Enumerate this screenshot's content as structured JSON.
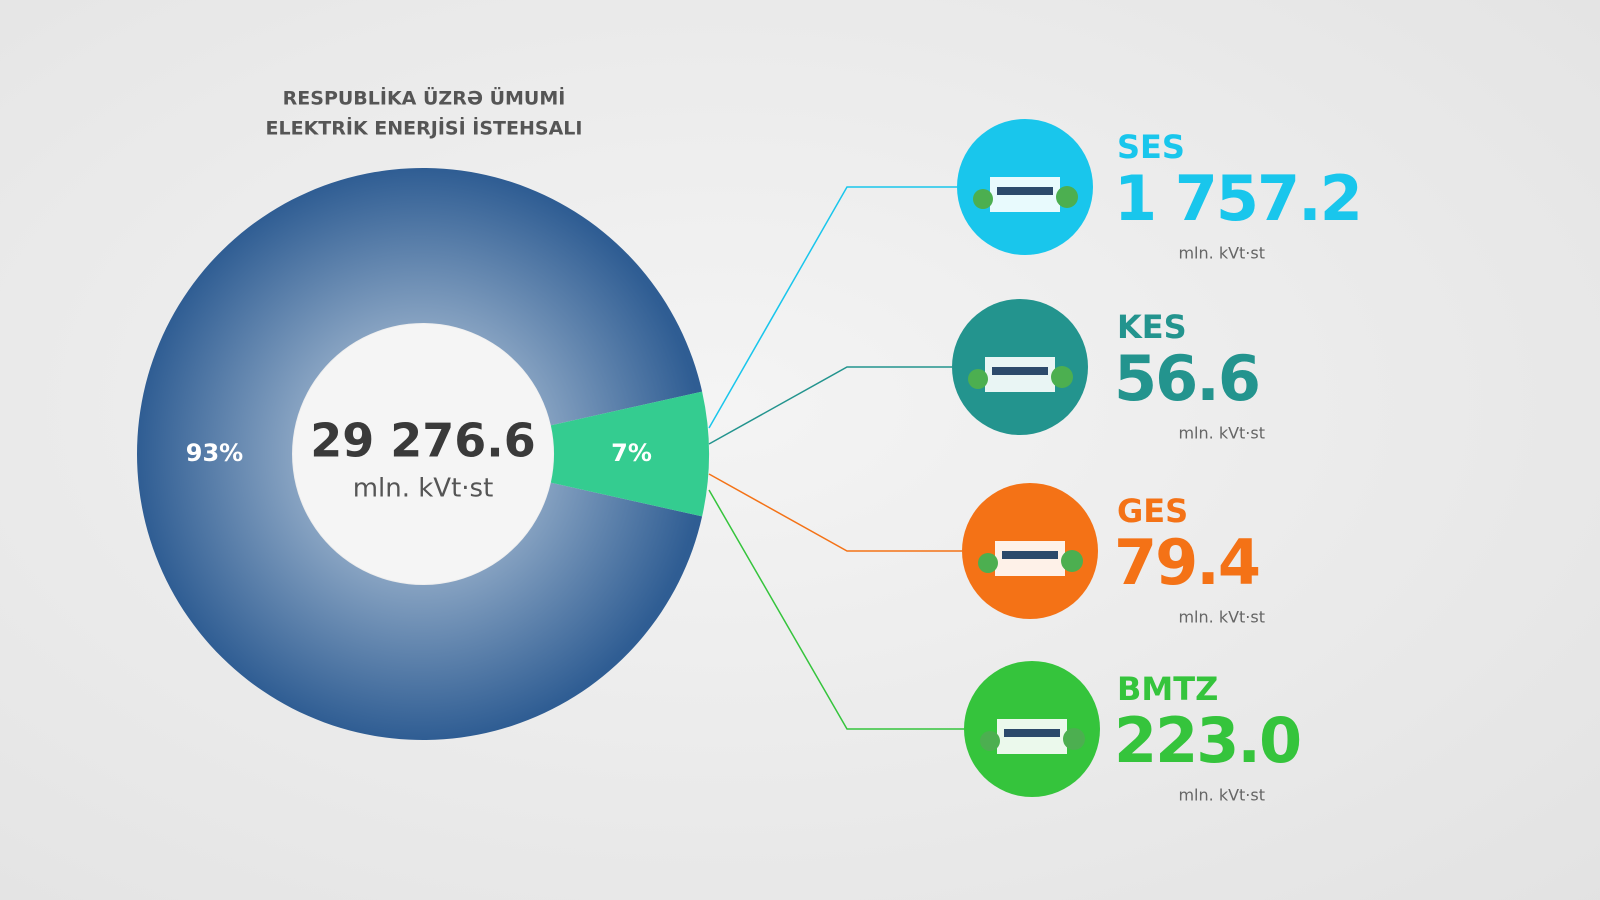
{
  "title_lines": [
    "RESPUBLİKA ÜZRƏ ÜMUMİ",
    "ELEKTRİK ENERJİSİ İSTEHSALI"
  ],
  "chart_data": {
    "type": "donut",
    "categories": [
      null,
      null
    ],
    "values": [
      93,
      7
    ],
    "value_labels": [
      "93%",
      "7%"
    ],
    "colors": [
      "#2f5d93",
      "#34cc90"
    ],
    "center_value": "29 276.6",
    "center_unit": "mln. kVt·st"
  },
  "items": [
    {
      "name": "SES",
      "value": "1 757.2",
      "unit": "mln. kVt·st",
      "color": "#19c6ec"
    },
    {
      "name": "KES",
      "value": "56.6",
      "unit": "mln. kVt·st",
      "color": "#23948e"
    },
    {
      "name": "GES",
      "value": "79.4",
      "unit": "mln. kVt·st",
      "color": "#f47216"
    },
    {
      "name": "BMTZ",
      "value": "223.0",
      "unit": "mln. kVt·st",
      "color": "#35c43c"
    }
  ]
}
